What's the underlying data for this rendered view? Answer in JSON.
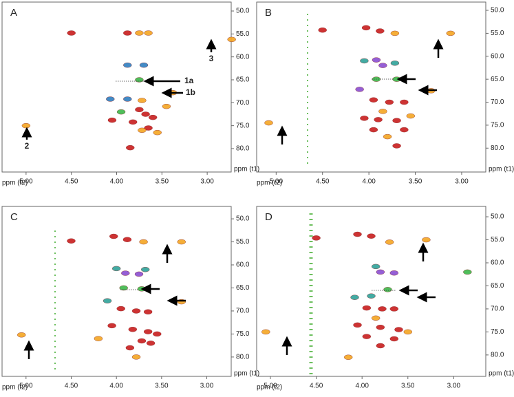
{
  "chart_data": [
    {
      "type": "scatter",
      "title": "A",
      "xlabel": "ppm (t2)",
      "ylabel": "ppm (t1)",
      "xlim": [
        5.265,
        2.735
      ],
      "ylim": [
        48.05,
        85.1
      ],
      "xticks": [
        {
          "value": 5,
          "label": "5.00"
        },
        {
          "value": 4.5,
          "label": "4.50"
        },
        {
          "value": 4,
          "label": "4.00"
        },
        {
          "value": 3.5,
          "label": "3.50"
        },
        {
          "value": 3,
          "label": "3.00"
        }
      ],
      "yticks": [
        {
          "value": 50,
          "label": "50.0"
        },
        {
          "value": 55,
          "label": "55.0"
        },
        {
          "value": 60,
          "label": "60.0"
        },
        {
          "value": 65,
          "label": "65.0"
        },
        {
          "value": 70,
          "label": "70.0"
        },
        {
          "value": 75,
          "label": "75.0"
        },
        {
          "value": 80,
          "label": "80.0"
        }
      ],
      "annotations": [
        "1a",
        "1b",
        "2",
        "3"
      ],
      "series": [
        {
          "color": "#c81e1e",
          "x": [
            4.5,
            3.88,
            3.75,
            3.68,
            3.6,
            4.05,
            3.82,
            3.65,
            3.85
          ],
          "y": [
            54.8,
            54.8,
            71.5,
            72.5,
            73.2,
            73.8,
            74.2,
            75.5,
            79.8
          ]
        },
        {
          "color": "#f5a623",
          "x": [
            3.75,
            3.65,
            2.73,
            3.38,
            3.72,
            3.45,
            3.72,
            3.55,
            5.0
          ],
          "y": [
            54.8,
            54.8,
            56.2,
            67.8,
            69.5,
            70.8,
            76.0,
            76.5,
            75.0
          ]
        },
        {
          "color": "#3cb84a",
          "x": [
            3.75,
            3.95
          ],
          "y": [
            65.0,
            72.0
          ]
        },
        {
          "color": "#2f7fc0",
          "x": [
            3.88,
            3.7,
            4.07,
            3.88
          ],
          "y": [
            61.8,
            61.8,
            69.2,
            69.2
          ]
        }
      ]
    },
    {
      "type": "scatter",
      "title": "B",
      "xlabel": "ppm (t2)",
      "ylabel": "ppm (t1)",
      "xlim": [
        5.21,
        2.74
      ],
      "ylim": [
        48.2,
        85.2
      ],
      "xticks": [
        {
          "value": 5,
          "label": "5.00"
        },
        {
          "value": 4.5,
          "label": "4.50"
        },
        {
          "value": 4,
          "label": "4.00"
        },
        {
          "value": 3.5,
          "label": "3.50"
        },
        {
          "value": 3,
          "label": "3.00"
        }
      ],
      "yticks": [
        {
          "value": 50,
          "label": "50.0"
        },
        {
          "value": 55,
          "label": "55.0"
        },
        {
          "value": 60,
          "label": "60.0"
        },
        {
          "value": 65,
          "label": "65.0"
        },
        {
          "value": 70,
          "label": "70.0"
        },
        {
          "value": 75,
          "label": "75.0"
        },
        {
          "value": 80,
          "label": "80.0"
        }
      ],
      "series": [
        {
          "color": "#c81e1e",
          "x": [
            4.5,
            4.03,
            3.88,
            3.95,
            3.78,
            3.62,
            4.05,
            3.9,
            3.7,
            3.95,
            3.62,
            3.7
          ],
          "y": [
            54.3,
            53.8,
            54.5,
            69.5,
            70.0,
            70.0,
            73.5,
            73.8,
            74.0,
            76.0,
            76.0,
            79.5
          ]
        },
        {
          "color": "#f5a623",
          "x": [
            3.72,
            3.12,
            3.33,
            3.85,
            3.55,
            3.8,
            5.08
          ],
          "y": [
            55.0,
            55.0,
            67.5,
            72.0,
            73.0,
            77.5,
            74.5
          ]
        },
        {
          "color": "#3cb84a",
          "x": [
            3.7,
            3.92
          ],
          "y": [
            65.0,
            65.0
          ]
        },
        {
          "color": "#2fa39a",
          "x": [
            3.72,
            4.05
          ],
          "y": [
            61.5,
            61.0
          ]
        },
        {
          "color": "#8a4ed1",
          "x": [
            3.92,
            3.85,
            4.1
          ],
          "y": [
            60.8,
            62.0,
            67.2
          ]
        }
      ]
    },
    {
      "type": "scatter",
      "title": "C",
      "xlabel": "ppm (t2)",
      "ylabel": "ppm (t1)",
      "xlim": [
        5.265,
        2.73
      ],
      "ylim": [
        47.3,
        84.2
      ],
      "xticks": [
        {
          "value": 5,
          "label": "5.00"
        },
        {
          "value": 4.5,
          "label": "4.50"
        },
        {
          "value": 4,
          "label": "4.00"
        },
        {
          "value": 3.5,
          "label": "3.50"
        },
        {
          "value": 3,
          "label": "3.00"
        }
      ],
      "yticks": [
        {
          "value": 50,
          "label": "50.0"
        },
        {
          "value": 55,
          "label": "55.0"
        },
        {
          "value": 60,
          "label": "60.0"
        },
        {
          "value": 65,
          "label": "65.0"
        },
        {
          "value": 70,
          "label": "70.0"
        },
        {
          "value": 75,
          "label": "75.0"
        },
        {
          "value": 80,
          "label": "80.0"
        }
      ],
      "series": [
        {
          "color": "#c81e1e",
          "x": [
            4.5,
            4.03,
            3.88,
            3.95,
            3.78,
            3.65,
            4.05,
            3.82,
            3.65,
            3.55,
            3.72,
            3.62,
            3.85
          ],
          "y": [
            54.8,
            53.8,
            54.5,
            69.5,
            70.0,
            70.2,
            73.2,
            74.0,
            74.5,
            75.0,
            76.5,
            77.0,
            78.0
          ]
        },
        {
          "color": "#f5a623",
          "x": [
            3.7,
            3.28,
            3.28,
            4.2,
            5.05,
            3.78
          ],
          "y": [
            55.0,
            55.0,
            68.0,
            76.0,
            75.2,
            80.0
          ]
        },
        {
          "color": "#3cb84a",
          "x": [
            3.72,
            3.92
          ],
          "y": [
            65.2,
            65.0
          ]
        },
        {
          "color": "#2fa39a",
          "x": [
            4.0,
            3.68,
            4.1
          ],
          "y": [
            60.8,
            61.0,
            67.8
          ]
        },
        {
          "color": "#8a4ed1",
          "x": [
            3.9,
            3.75
          ],
          "y": [
            61.8,
            62.0
          ]
        }
      ]
    },
    {
      "type": "scatter",
      "title": "D",
      "xlabel": "ppm (t2)",
      "ylabel": "ppm (t1)",
      "xlim": [
        5.15,
        2.65
      ],
      "ylim": [
        47.75,
        84.65
      ],
      "xticks": [
        {
          "value": 5,
          "label": "5.00"
        },
        {
          "value": 4.5,
          "label": "4.50"
        },
        {
          "value": 4,
          "label": "4.00"
        },
        {
          "value": 3.5,
          "label": "3.50"
        },
        {
          "value": 3,
          "label": "3.00"
        }
      ],
      "yticks": [
        {
          "value": 50,
          "label": "50.0"
        },
        {
          "value": 55,
          "label": "55.0"
        },
        {
          "value": 60,
          "label": "60.0"
        },
        {
          "value": 65,
          "label": "65.0"
        },
        {
          "value": 70,
          "label": "70.0"
        },
        {
          "value": 75,
          "label": "75.0"
        },
        {
          "value": 80,
          "label": "80.0"
        }
      ],
      "series": [
        {
          "color": "#c81e1e",
          "x": [
            4.5,
            4.05,
            3.9,
            3.95,
            3.78,
            3.65,
            4.05,
            3.8,
            3.6,
            3.95,
            3.65,
            3.8
          ],
          "y": [
            54.6,
            53.8,
            54.2,
            69.8,
            70.0,
            70.0,
            73.5,
            74.0,
            74.5,
            76.0,
            76.5,
            78.0
          ]
        },
        {
          "color": "#f5a623",
          "x": [
            3.7,
            3.3,
            3.85,
            3.5,
            4.15,
            5.05
          ],
          "y": [
            55.5,
            55.0,
            72.0,
            75.0,
            80.5,
            75.0
          ]
        },
        {
          "color": "#3cb84a",
          "x": [
            3.72,
            2.85
          ],
          "y": [
            65.8,
            62.0
          ]
        },
        {
          "color": "#2fa39a",
          "x": [
            3.85,
            4.08,
            3.9
          ],
          "y": [
            60.8,
            67.5,
            67.2
          ]
        },
        {
          "color": "#8a4ed1",
          "x": [
            3.8,
            3.65
          ],
          "y": [
            62.0,
            62.2
          ]
        }
      ]
    }
  ]
}
